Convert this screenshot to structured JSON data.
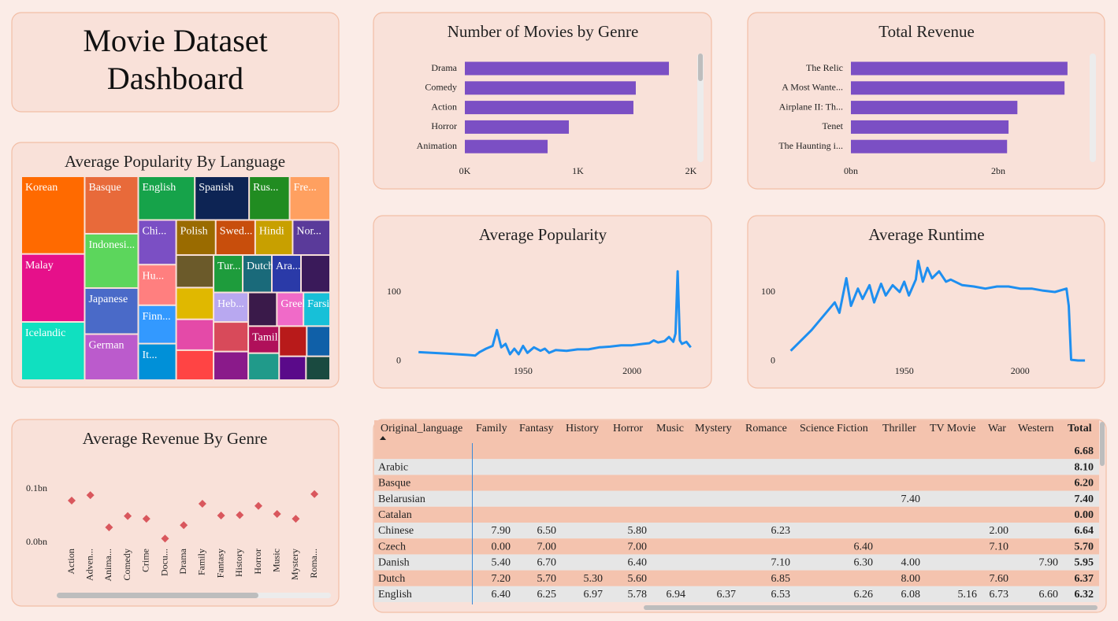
{
  "header": {
    "title": "Movie Dataset Dashboard"
  },
  "chart_data": [
    {
      "type": "treemap",
      "title": "Average Popularity By Language",
      "categories": [
        "Korean",
        "Malay",
        "Icelandic",
        "Basque",
        "Indonesi...",
        "Japanese",
        "German",
        "English",
        "Spanish",
        "Rus...",
        "Fre...",
        "Chi...",
        "Hu...",
        "Finn...",
        "It...",
        "Polish",
        "Swed...",
        "Hindi",
        "Nor...",
        null,
        null,
        null,
        null,
        "Tur...",
        "Dutch",
        "Ara...",
        null,
        "Heb...",
        null,
        null,
        null,
        "Greek",
        "Farsi",
        "Tamil",
        null,
        null,
        null,
        null,
        null
      ],
      "values": [
        7680,
        6720,
        5760,
        4800,
        4540,
        3850,
        3850,
        3850,
        3700,
        2760,
        2760,
        2640,
        2400,
        2270,
        2160,
        2160,
        2160,
        2050,
        2050,
        1900,
        1850,
        1800,
        1750,
        1700,
        1700,
        1700,
        1700,
        1600,
        1600,
        1550,
        1500,
        1400,
        1400,
        1300,
        1300,
        1300,
        1100,
        1000,
        900
      ],
      "colors": [
        "#ff6a00",
        "#e6108a",
        "#10e0c0",
        "#e86a3a",
        "#5cd65c",
        "#4a6ac8",
        "#bb5bcc",
        "#16a34a",
        "#0d2454",
        "#218c21",
        "#ffa060",
        "#7b4fc4",
        "#ff7f7f",
        "#3399ff",
        "#0090d8",
        "#9a6b00",
        "#c84e0c",
        "#c8a000",
        "#5a3a9a",
        "#6b5a2a",
        "#e0b800",
        "#e44aa8",
        "#ff4444",
        "#1e9c3c",
        "#1a6a7a",
        "#2a3aa8",
        "#3a1a5a",
        "#b8a8f0",
        "#d84a5a",
        "#8a1a8a",
        "#3a1a4a",
        "#f06ac8",
        "#17c0d8",
        "#b0105a",
        "#209a8a",
        "#b81a1a",
        "#1060a8",
        "#5a0a8a",
        "#1a4a40"
      ]
    },
    {
      "type": "bar",
      "orientation": "horizontal",
      "title": "Number of Movies by Genre",
      "categories": [
        "Drama",
        "Comedy",
        "Action",
        "Horror",
        "Animation"
      ],
      "values": [
        1805,
        1512,
        1491,
        920,
        732
      ],
      "color": "#7b4fc4",
      "xlim": [
        0,
        2000
      ],
      "xticks": [
        {
          "value": 0,
          "label": "0K"
        },
        {
          "value": 1000,
          "label": "1K"
        },
        {
          "value": 2000,
          "label": "2K"
        }
      ]
    },
    {
      "type": "bar",
      "orientation": "horizontal",
      "title": "Total Revenue",
      "categories": [
        "The Relic",
        "A Most Wante...",
        "Airplane II: Th...",
        "Tenet",
        "The Haunting i..."
      ],
      "values": [
        2.94,
        2.9,
        2.26,
        2.14,
        2.12
      ],
      "color": "#7b4fc4",
      "xlim": [
        0,
        3
      ],
      "xticks": [
        {
          "value": 0,
          "label": "0bn"
        },
        {
          "value": 2,
          "label": "2bn"
        }
      ]
    },
    {
      "type": "line",
      "title": "Average Popularity",
      "x": [
        1902,
        1915,
        1925,
        1928,
        1930,
        1933,
        1936,
        1938,
        1940,
        1942,
        1944,
        1946,
        1948,
        1950,
        1952,
        1955,
        1958,
        1960,
        1962,
        1965,
        1970,
        1975,
        1980,
        1985,
        1990,
        1995,
        2000,
        2005,
        2008,
        2010,
        2012,
        2015,
        2017,
        2019,
        2020,
        2021,
        2022,
        2023,
        2025,
        2027
      ],
      "values": [
        13,
        11,
        9,
        8,
        13,
        18,
        22,
        45,
        20,
        25,
        10,
        18,
        10,
        22,
        12,
        20,
        15,
        18,
        12,
        16,
        15,
        17,
        17,
        20,
        21,
        23,
        23,
        25,
        26,
        30,
        27,
        29,
        35,
        28,
        40,
        130,
        30,
        25,
        28,
        20
      ],
      "color": "#1e8ff0",
      "xlim": [
        1890,
        2030
      ],
      "ylim": [
        -7,
        157
      ],
      "xticks": [
        1950,
        2000
      ],
      "yticks": [
        0,
        100
      ]
    },
    {
      "type": "line",
      "title": "Average Runtime",
      "x": [
        1901,
        1910,
        1920,
        1922,
        1925,
        1927,
        1930,
        1932,
        1935,
        1937,
        1940,
        1942,
        1945,
        1948,
        1950,
        1952,
        1955,
        1956,
        1958,
        1960,
        1962,
        1965,
        1968,
        1970,
        1975,
        1980,
        1985,
        1990,
        1995,
        2000,
        2005,
        2010,
        2015,
        2020,
        2021,
        2022,
        2025,
        2028
      ],
      "values": [
        15,
        45,
        85,
        70,
        120,
        80,
        105,
        90,
        110,
        85,
        112,
        95,
        110,
        100,
        115,
        95,
        118,
        145,
        115,
        135,
        120,
        130,
        115,
        118,
        110,
        108,
        105,
        108,
        108,
        105,
        105,
        102,
        100,
        105,
        80,
        2,
        1,
        1
      ],
      "color": "#1e8ff0",
      "xlim": [
        1895,
        2030
      ],
      "ylim": [
        -7,
        157
      ],
      "xticks": [
        1950,
        2000
      ],
      "yticks": [
        0,
        100
      ]
    },
    {
      "type": "scatter",
      "title": "Average Revenue By Genre",
      "categories": [
        "Action",
        "Adven...",
        "Anima...",
        "Comedy",
        "Crime",
        "Docu...",
        "Drama",
        "Family",
        "Fantasy",
        "History",
        "Horror",
        "Music",
        "Mystery",
        "Roma..."
      ],
      "values": [
        0.078,
        0.088,
        0.028,
        0.049,
        0.044,
        0.007,
        0.032,
        0.072,
        0.05,
        0.051,
        0.068,
        0.053,
        0.044,
        0.09
      ],
      "color": "#d9575d",
      "ylim": [
        -0.01,
        0.13
      ],
      "yticks": [
        {
          "value": 0,
          "label": "0.0bn"
        },
        {
          "value": 0.1,
          "label": "0.1bn"
        }
      ]
    }
  ],
  "table": {
    "columns": [
      "Original_language",
      "Family",
      "Fantasy",
      "History",
      "Horror",
      "Music",
      "Mystery",
      "Romance",
      "Science Fiction",
      "Thriller",
      "TV Movie",
      "War",
      "Western",
      "Total"
    ],
    "rows": [
      [
        null,
        null,
        null,
        null,
        null,
        null,
        null,
        null,
        null,
        null,
        null,
        null,
        null,
        "6.68"
      ],
      [
        "Arabic",
        null,
        null,
        null,
        null,
        null,
        null,
        null,
        null,
        null,
        null,
        null,
        null,
        "8.10"
      ],
      [
        "Basque",
        null,
        null,
        null,
        null,
        null,
        null,
        null,
        null,
        null,
        null,
        null,
        null,
        "6.20"
      ],
      [
        "Belarusian",
        null,
        null,
        null,
        null,
        null,
        null,
        null,
        null,
        "7.40",
        null,
        null,
        null,
        "7.40"
      ],
      [
        "Catalan",
        null,
        null,
        null,
        null,
        null,
        null,
        null,
        null,
        null,
        null,
        null,
        null,
        "0.00"
      ],
      [
        "Chinese",
        "7.90",
        "6.50",
        null,
        "5.80",
        null,
        null,
        "6.23",
        null,
        null,
        null,
        "2.00",
        null,
        "6.64"
      ],
      [
        "Czech",
        "0.00",
        "7.00",
        null,
        "7.00",
        null,
        null,
        null,
        "6.40",
        null,
        null,
        "7.10",
        null,
        "5.70"
      ],
      [
        "Danish",
        "5.40",
        "6.70",
        null,
        "6.40",
        null,
        null,
        "7.10",
        "6.30",
        "4.00",
        null,
        null,
        "7.90",
        "5.95"
      ],
      [
        "Dutch",
        "7.20",
        "5.70",
        "5.30",
        "5.60",
        null,
        null,
        "6.85",
        null,
        "8.00",
        null,
        "7.60",
        null,
        "6.37"
      ],
      [
        "English",
        "6.40",
        "6.25",
        "6.97",
        "5.78",
        "6.94",
        "6.37",
        "6.53",
        "6.26",
        "6.08",
        "5.16",
        "6.73",
        "6.60",
        "6.32"
      ]
    ]
  }
}
